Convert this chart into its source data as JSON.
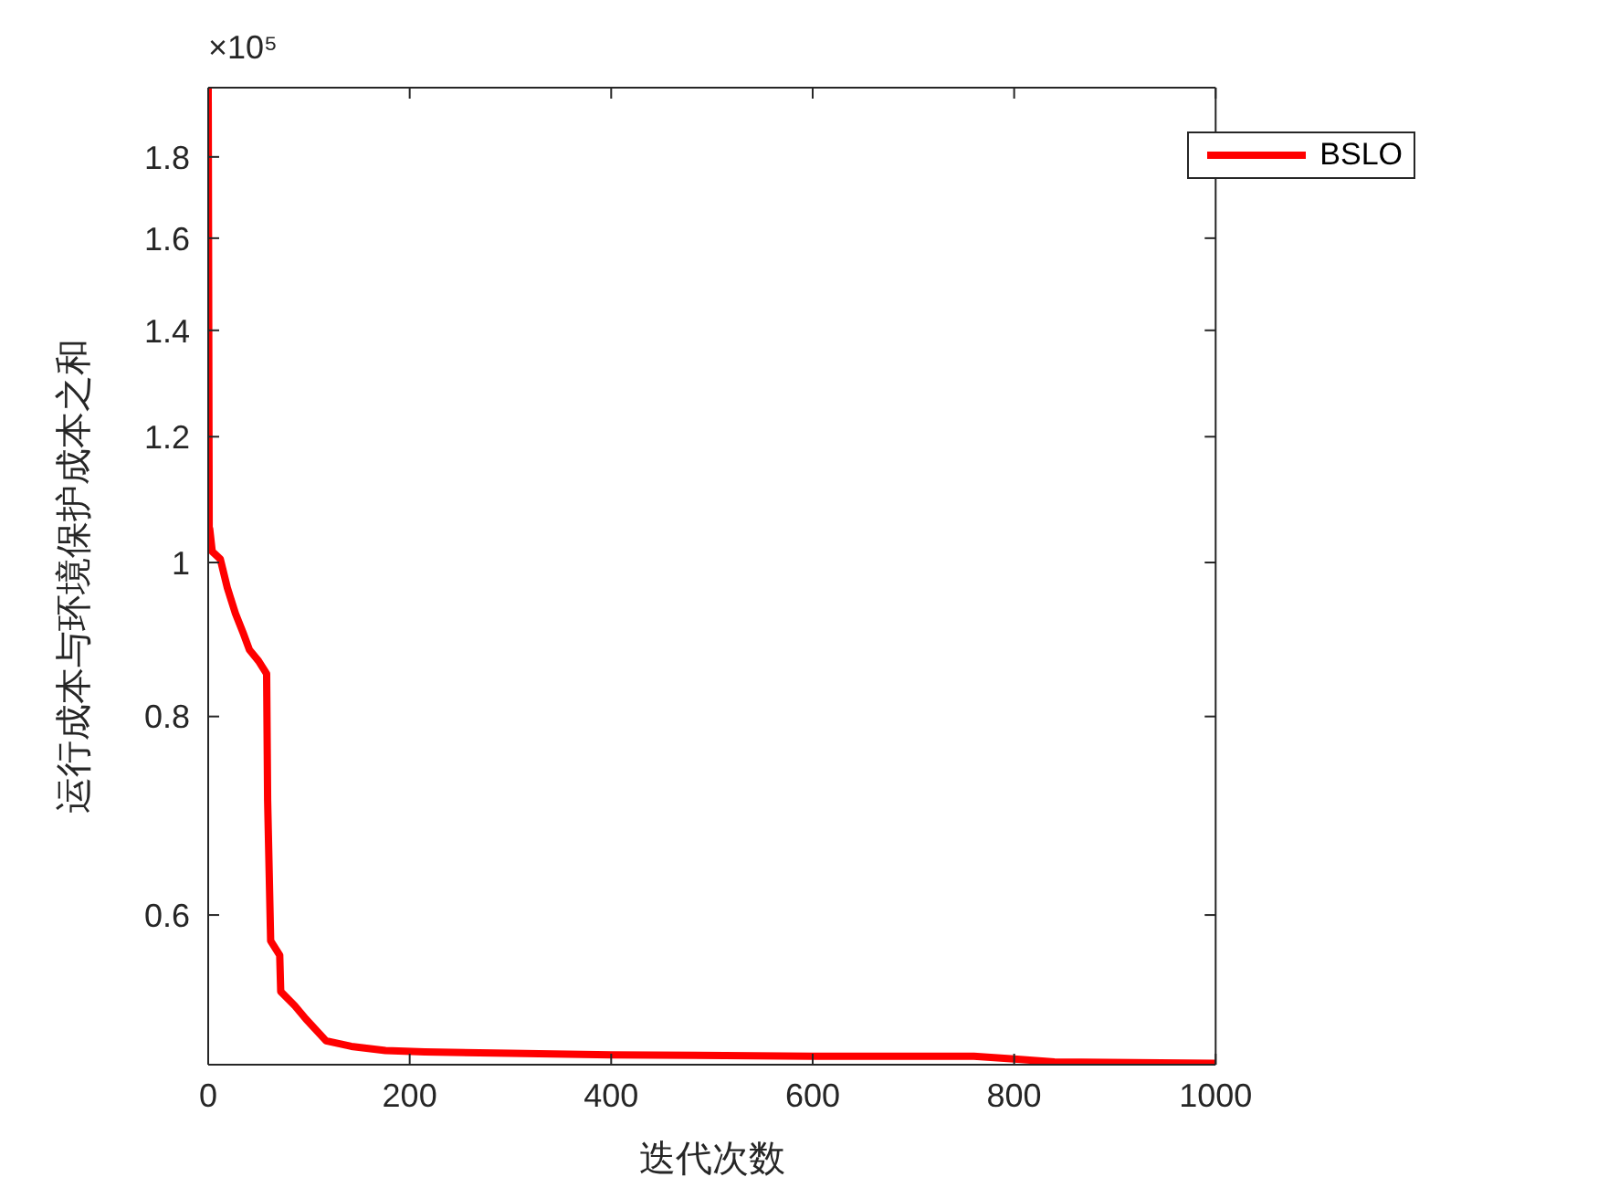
{
  "chart_data": {
    "type": "line",
    "xlabel": "迭代次数",
    "ylabel": "运行成本与环境保护成本之和",
    "annotations": [
      "×10⁵"
    ],
    "x": [
      0,
      1,
      1.5,
      4,
      12,
      19,
      27,
      35,
      41,
      50,
      58,
      59,
      62,
      71,
      72,
      86,
      97,
      117,
      142,
      176,
      215,
      300,
      400,
      600,
      760,
      800,
      840,
      1000
    ],
    "series": [
      {
        "name": "BSLO",
        "color": "#ff0000",
        "values": [
          1.99,
          1.035,
          1.05,
          1.016,
          1.005,
          0.964,
          0.929,
          0.902,
          0.881,
          0.867,
          0.851,
          0.708,
          0.578,
          0.566,
          0.537,
          0.526,
          0.516,
          0.5,
          0.496,
          0.493,
          0.492,
          0.491,
          0.49,
          0.489,
          0.489,
          0.487,
          0.485,
          0.484
        ]
      }
    ],
    "xlim": [
      0,
      1000
    ],
    "xticks": [
      0,
      200,
      400,
      600,
      800,
      1000
    ],
    "ylim": [
      0.483,
      1.99
    ],
    "yticks": [
      0.6,
      0.8,
      1,
      1.2,
      1.4,
      1.6,
      1.8
    ],
    "log": "y",
    "grid": false,
    "legend": "top right",
    "marker": "none",
    "line_style": "solid"
  }
}
